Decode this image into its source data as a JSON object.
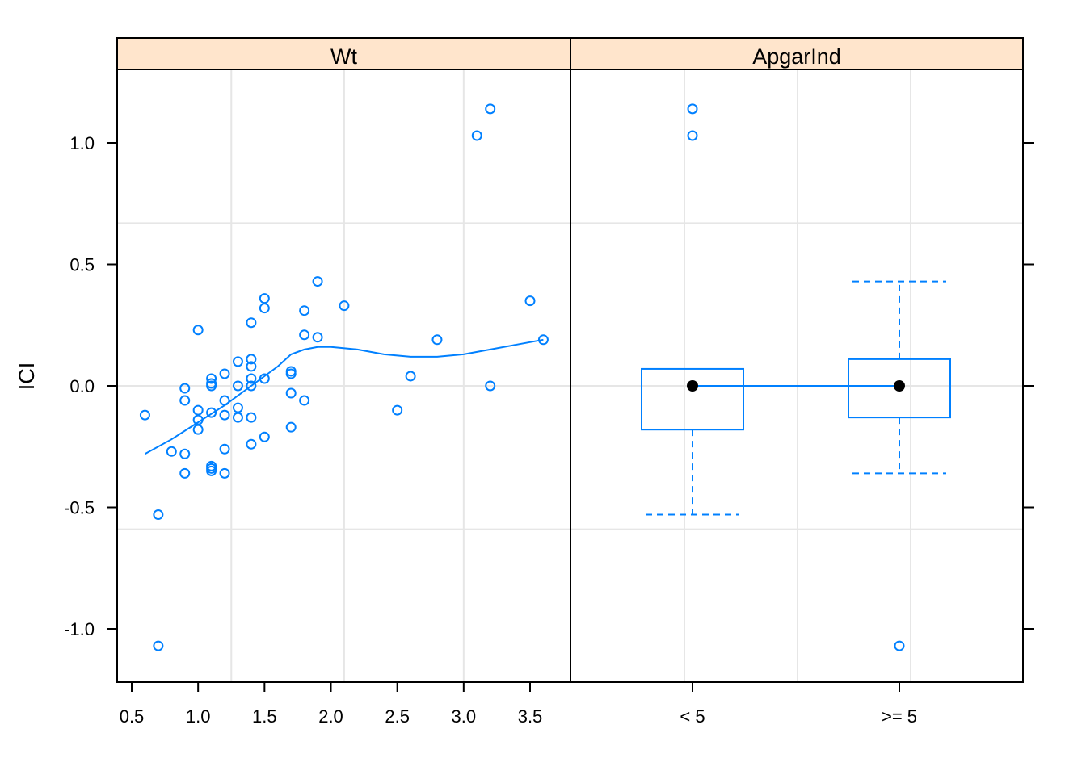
{
  "colors": {
    "strip_bg": "#ffe5cc",
    "grid": "#e6e6e6",
    "data": "#0080ff",
    "border": "#000000",
    "median_dot": "#000000"
  },
  "chart_data": [
    {
      "type": "scatter",
      "panel": "Wt",
      "strip_label": "Wt",
      "ylabel": "ICI",
      "xlabel": "",
      "xlim": [
        0.5,
        3.7
      ],
      "ylim": [
        -1.2,
        1.3
      ],
      "x_ticks": [
        0.5,
        1.0,
        1.5,
        2.0,
        2.5,
        3.0,
        3.5
      ],
      "x_tick_labels": [
        "0.5",
        "1.0",
        "1.5",
        "2.0",
        "2.5",
        "3.0",
        "3.5"
      ],
      "y_ticks": [
        -1.0,
        -0.5,
        0.0,
        0.5,
        1.0
      ],
      "y_tick_labels": [
        "-1.0",
        "-0.5",
        "0.0",
        "0.5",
        "1.0"
      ],
      "grid": true,
      "grid_x": [
        1.25,
        2.1,
        3.0
      ],
      "grid_y": [
        -0.59,
        0.0,
        0.67
      ],
      "points": [
        [
          0.6,
          -0.12
        ],
        [
          0.7,
          -0.53
        ],
        [
          0.7,
          -1.07
        ],
        [
          0.8,
          -0.27
        ],
        [
          0.9,
          -0.01
        ],
        [
          0.9,
          -0.06
        ],
        [
          0.9,
          -0.28
        ],
        [
          0.9,
          -0.36
        ],
        [
          1.0,
          0.23
        ],
        [
          1.0,
          -0.1
        ],
        [
          1.0,
          -0.14
        ],
        [
          1.0,
          -0.18
        ],
        [
          1.1,
          0.03
        ],
        [
          1.1,
          0.01
        ],
        [
          1.1,
          0.0
        ],
        [
          1.1,
          -0.11
        ],
        [
          1.1,
          -0.33
        ],
        [
          1.1,
          -0.34
        ],
        [
          1.1,
          -0.35
        ],
        [
          1.2,
          0.05
        ],
        [
          1.2,
          -0.06
        ],
        [
          1.2,
          -0.12
        ],
        [
          1.2,
          -0.26
        ],
        [
          1.2,
          -0.36
        ],
        [
          1.3,
          0.1
        ],
        [
          1.3,
          0.0
        ],
        [
          1.3,
          -0.09
        ],
        [
          1.3,
          -0.13
        ],
        [
          1.4,
          0.26
        ],
        [
          1.4,
          0.11
        ],
        [
          1.4,
          0.08
        ],
        [
          1.4,
          0.03
        ],
        [
          1.4,
          0.0
        ],
        [
          1.4,
          -0.13
        ],
        [
          1.4,
          -0.24
        ],
        [
          1.5,
          0.36
        ],
        [
          1.5,
          0.32
        ],
        [
          1.5,
          0.03
        ],
        [
          1.5,
          -0.21
        ],
        [
          1.7,
          0.06
        ],
        [
          1.7,
          0.05
        ],
        [
          1.7,
          -0.03
        ],
        [
          1.7,
          -0.17
        ],
        [
          1.8,
          0.31
        ],
        [
          1.8,
          0.21
        ],
        [
          1.8,
          -0.06
        ],
        [
          1.9,
          0.43
        ],
        [
          1.9,
          0.2
        ],
        [
          2.1,
          0.33
        ],
        [
          2.5,
          -0.1
        ],
        [
          2.6,
          0.04
        ],
        [
          2.8,
          0.19
        ],
        [
          3.1,
          1.03
        ],
        [
          3.2,
          1.14
        ],
        [
          3.2,
          0.0
        ],
        [
          3.5,
          0.35
        ],
        [
          3.6,
          0.19
        ]
      ],
      "smooth": [
        [
          0.6,
          -0.28
        ],
        [
          0.8,
          -0.22
        ],
        [
          1.0,
          -0.15
        ],
        [
          1.2,
          -0.08
        ],
        [
          1.4,
          0.0
        ],
        [
          1.6,
          0.08
        ],
        [
          1.7,
          0.13
        ],
        [
          1.8,
          0.15
        ],
        [
          1.9,
          0.16
        ],
        [
          2.0,
          0.16
        ],
        [
          2.2,
          0.15
        ],
        [
          2.4,
          0.13
        ],
        [
          2.6,
          0.12
        ],
        [
          2.8,
          0.12
        ],
        [
          3.0,
          0.13
        ],
        [
          3.2,
          0.15
        ],
        [
          3.4,
          0.17
        ],
        [
          3.6,
          0.19
        ]
      ]
    },
    {
      "type": "box",
      "panel": "ApgarInd",
      "strip_label": "ApgarInd",
      "ylabel": "ICI",
      "categories": [
        "< 5",
        ">= 5"
      ],
      "ylim": [
        -1.2,
        1.3
      ],
      "y_ticks": [
        -1.0,
        -0.5,
        0.0,
        0.5,
        1.0
      ],
      "grid": true,
      "boxes": [
        {
          "category": "< 5",
          "lower_whisker": -0.53,
          "q1": -0.18,
          "median": 0.0,
          "q3": 0.07,
          "upper_whisker": 0.07,
          "outliers": [
            1.14,
            1.03
          ]
        },
        {
          "category": ">= 5",
          "lower_whisker": -0.36,
          "q1": -0.13,
          "median": 0.0,
          "q3": 0.11,
          "upper_whisker": 0.43,
          "outliers": [
            -1.07
          ]
        }
      ],
      "median_line": true
    }
  ]
}
